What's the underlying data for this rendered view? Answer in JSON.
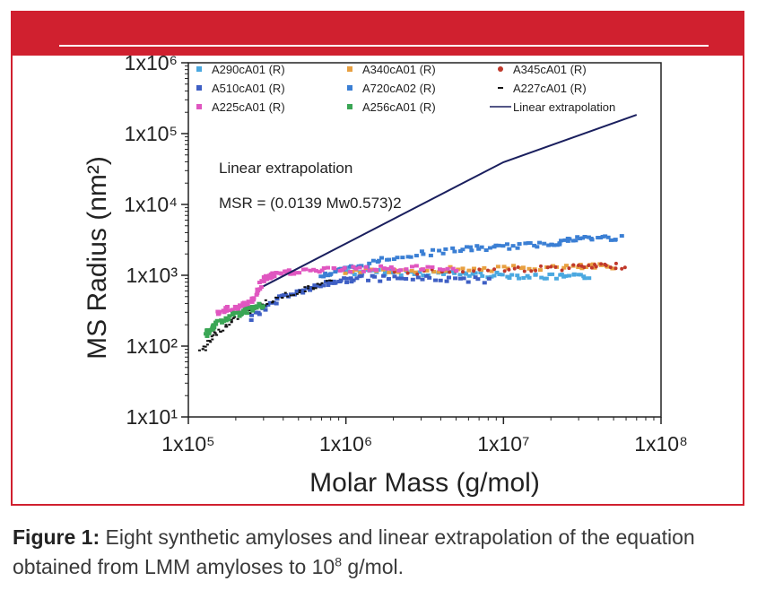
{
  "colors": {
    "accent": "#d0202f"
  },
  "chart_data": {
    "type": "scatter",
    "xlabel": "Molar Mass (g/mol)",
    "ylabel": "MS Radius (nm²)",
    "xscale": "log",
    "yscale": "log",
    "xlim": [
      100000,
      100000000
    ],
    "ylim": [
      10,
      1000000
    ],
    "x_ticks": [
      "1x10⁵",
      "1x10⁶",
      "1x10⁷",
      "1x10⁸"
    ],
    "y_ticks": [
      "1x10¹",
      "1x10²",
      "1x10³",
      "1x10⁴",
      "1x10⁵",
      "1x10⁶"
    ],
    "legend_position": "top",
    "annotation": {
      "title": "Linear extrapolation",
      "equation": "MSR = (0.0139 Mw0.573)2"
    },
    "series": [
      {
        "name": "A290cA01 (R)",
        "color": "#4aa8e0",
        "marker": "square",
        "points": [
          [
            1000000,
            1100
          ],
          [
            2000000,
            1100
          ],
          [
            5000000,
            1050
          ],
          [
            10000000,
            1000
          ],
          [
            20000000,
            950
          ],
          [
            35000000,
            950
          ]
        ]
      },
      {
        "name": "A340cA01 (R)",
        "color": "#e8a040",
        "marker": "square",
        "points": [
          [
            1000000,
            1150
          ],
          [
            3000000,
            1200
          ],
          [
            10000000,
            1250
          ],
          [
            30000000,
            1300
          ],
          [
            50000000,
            1350
          ]
        ]
      },
      {
        "name": "A345cA01 (R)",
        "color": "#c0392b",
        "marker": "dot",
        "points": [
          [
            2000000,
            1100
          ],
          [
            10000000,
            1200
          ],
          [
            30000000,
            1300
          ],
          [
            58000000,
            1350
          ]
        ]
      },
      {
        "name": "A510cA01 (R)",
        "color": "#3e5fc4",
        "marker": "square",
        "points": [
          [
            250000,
            250
          ],
          [
            400000,
            500
          ],
          [
            600000,
            650
          ],
          [
            800000,
            800
          ],
          [
            1200000,
            900
          ],
          [
            3000000,
            900
          ],
          [
            8000000,
            850
          ]
        ]
      },
      {
        "name": "A720cA02 (R)",
        "color": "#3b7fd4",
        "marker": "square",
        "points": [
          [
            700000,
            1000
          ],
          [
            1000000,
            1200
          ],
          [
            2000000,
            1800
          ],
          [
            5000000,
            2300
          ],
          [
            10000000,
            2500
          ],
          [
            20000000,
            2800
          ],
          [
            30000000,
            3300
          ],
          [
            55000000,
            3400
          ]
        ]
      },
      {
        "name": "A227cA01 (R)",
        "color": "#111111",
        "marker": "dash",
        "points": [
          [
            120000,
            80
          ],
          [
            150000,
            150
          ],
          [
            200000,
            250
          ],
          [
            300000,
            400
          ],
          [
            500000,
            600
          ],
          [
            800000,
            800
          ]
        ]
      },
      {
        "name": "A225cA01 (R)",
        "color": "#e056c0",
        "marker": "square",
        "points": [
          [
            150000,
            300
          ],
          [
            200000,
            350
          ],
          [
            250000,
            400
          ],
          [
            300000,
            900
          ],
          [
            350000,
            1000
          ],
          [
            500000,
            1150
          ],
          [
            1000000,
            1200
          ],
          [
            2000000,
            1250
          ],
          [
            5000000,
            1250
          ]
        ]
      },
      {
        "name": "A256cA01 (R)",
        "color": "#3aa655",
        "marker": "square",
        "points": [
          [
            130000,
            150
          ],
          [
            150000,
            200
          ],
          [
            200000,
            280
          ],
          [
            250000,
            330
          ],
          [
            300000,
            380
          ]
        ]
      },
      {
        "name": "Linear extrapolation",
        "color": "#1a1f5e",
        "marker": "line",
        "points": [
          [
            300000,
            700
          ],
          [
            1000000,
            2810
          ],
          [
            10000000,
            39500
          ],
          [
            70000000,
            184000
          ]
        ]
      }
    ]
  },
  "caption": {
    "label": "Figure 1:",
    "text_part1": " Eight synthetic amyloses and linear extrapolation of the equation obtained from LMM amyloses to 10",
    "sup": "8",
    "text_part2": " g/mol."
  }
}
